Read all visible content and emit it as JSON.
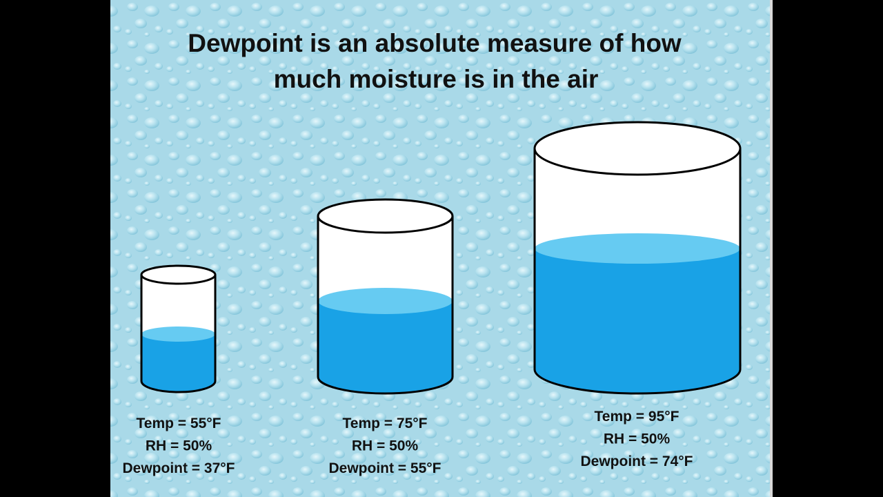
{
  "title": [
    "Dewpoint is an absolute measure of how",
    "much moisture is in the air"
  ],
  "cylinders": [
    {
      "lines": [
        "Temp = 55°F",
        "RH = 50%",
        "Dewpoint = 37°F"
      ]
    },
    {
      "lines": [
        "Temp = 75°F",
        "RH = 50%",
        "Dewpoint = 55°F"
      ]
    },
    {
      "lines": [
        "Temp = 95°F",
        "RH = 50%",
        "Dewpoint = 74°F"
      ]
    }
  ]
}
